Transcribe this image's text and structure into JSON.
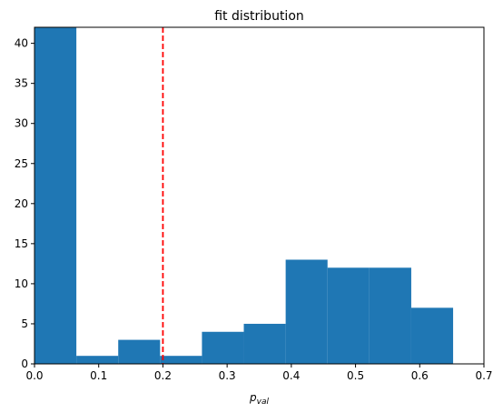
{
  "chart_data": {
    "type": "bar",
    "title": "fit distribution",
    "xlabel": "p",
    "xlabel_subscript": "val",
    "ylabel": "",
    "xlim": [
      0.0,
      0.7
    ],
    "ylim": [
      0,
      42
    ],
    "bin_edges": [
      0.0,
      0.0652,
      0.1304,
      0.1956,
      0.2608,
      0.326,
      0.3912,
      0.4564,
      0.5216,
      0.5868,
      0.652
    ],
    "values": [
      42,
      1,
      3,
      1,
      4,
      5,
      13,
      12,
      12,
      7
    ],
    "x_ticks": [
      "0.0",
      "0.1",
      "0.2",
      "0.3",
      "0.4",
      "0.5",
      "0.6",
      "0.7"
    ],
    "x_tick_values": [
      0.0,
      0.1,
      0.2,
      0.3,
      0.4,
      0.5,
      0.6,
      0.7
    ],
    "y_ticks": [
      "0",
      "5",
      "10",
      "15",
      "20",
      "25",
      "30",
      "35",
      "40"
    ],
    "y_tick_values": [
      0,
      5,
      10,
      15,
      20,
      25,
      30,
      35,
      40
    ],
    "threshold_line": {
      "x": 0.2,
      "style": "dashed"
    },
    "grid": false,
    "colors": {
      "bar": "#1f77b4",
      "threshold": "#ff0000"
    }
  }
}
